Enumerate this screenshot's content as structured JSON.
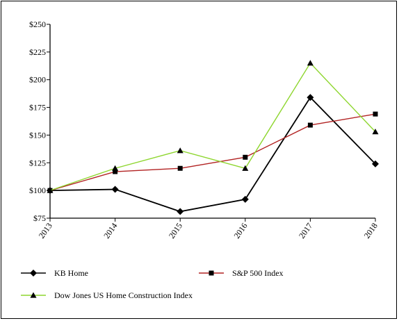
{
  "chart_data": {
    "type": "line",
    "title": "",
    "xlabel": "",
    "ylabel": "",
    "categories": [
      "2013",
      "2014",
      "2015",
      "2016",
      "2017",
      "2018"
    ],
    "ylim": [
      75,
      250
    ],
    "y_ticks": [
      75,
      100,
      125,
      150,
      175,
      200,
      225,
      250
    ],
    "y_tick_labels": [
      "$75",
      "$100",
      "$125",
      "$150",
      "$175",
      "$200",
      "$225",
      "$250"
    ],
    "grid": false,
    "legend_position": "bottom",
    "series": [
      {
        "name": "KB Home",
        "values": [
          100,
          101,
          81,
          92,
          184,
          124
        ],
        "color": "#000000",
        "marker": "diamond"
      },
      {
        "name": "S&P 500 Index",
        "values": [
          100,
          117,
          120,
          130,
          159,
          169
        ],
        "color": "#b22222",
        "marker": "square"
      },
      {
        "name": "Dow Jones US Home Construction Index",
        "values": [
          100,
          120,
          136,
          120,
          215,
          153
        ],
        "color": "#8ed62f",
        "marker": "triangle"
      }
    ]
  }
}
